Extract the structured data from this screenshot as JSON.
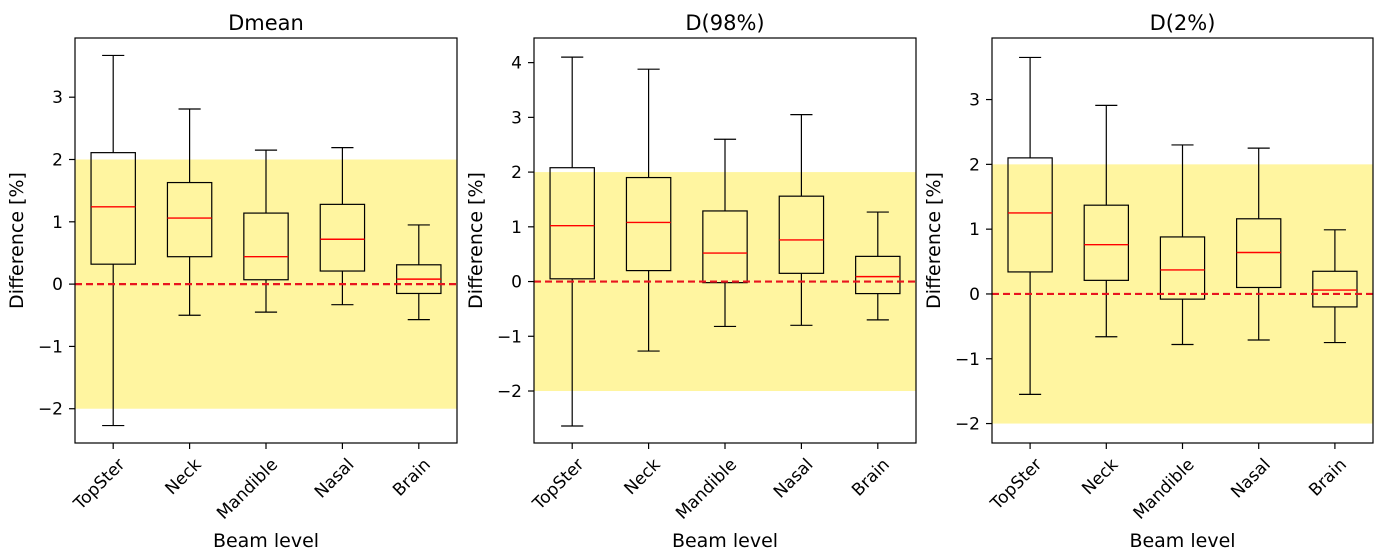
{
  "colors": {
    "band": "#fff5a0",
    "median": "#ff0000",
    "zero_line": "#e8141e",
    "box_edge": "#000000"
  },
  "chart_data": [
    {
      "type": "box",
      "title": "Dmean",
      "xlabel": "Beam level",
      "ylabel": "Difference [%]",
      "ylim": [
        -2.55,
        3.95
      ],
      "yticks": [
        -2,
        -1,
        0,
        1,
        2,
        3
      ],
      "ytick_labels": [
        "−2",
        "−1",
        "0",
        "1",
        "2",
        "3"
      ],
      "tolerance_band": [
        -2,
        2
      ],
      "reference_line": 0,
      "grid": false,
      "categories": [
        "TopSter",
        "Neck",
        "Mandible",
        "Nasal",
        "Brain"
      ],
      "boxes": [
        {
          "min": -2.27,
          "q1": 0.32,
          "median": 1.24,
          "q3": 2.11,
          "max": 3.67
        },
        {
          "min": -0.5,
          "q1": 0.44,
          "median": 1.06,
          "q3": 1.63,
          "max": 2.81
        },
        {
          "min": -0.45,
          "q1": 0.07,
          "median": 0.44,
          "q3": 1.14,
          "max": 2.15
        },
        {
          "min": -0.33,
          "q1": 0.21,
          "median": 0.72,
          "q3": 1.28,
          "max": 2.19
        },
        {
          "min": -0.57,
          "q1": -0.15,
          "median": 0.08,
          "q3": 0.31,
          "max": 0.95
        }
      ]
    },
    {
      "type": "box",
      "title": "D(98%)",
      "xlabel": "Beam level",
      "ylabel": "Difference [%]",
      "ylim": [
        -2.95,
        4.45
      ],
      "yticks": [
        -2,
        -1,
        0,
        1,
        2,
        3,
        4
      ],
      "ytick_labels": [
        "−2",
        "−1",
        "0",
        "1",
        "2",
        "3",
        "4"
      ],
      "tolerance_band": [
        -2,
        2
      ],
      "reference_line": 0,
      "grid": false,
      "categories": [
        "TopSter",
        "Neck",
        "Mandible",
        "Nasal",
        "Brain"
      ],
      "boxes": [
        {
          "min": -2.64,
          "q1": 0.05,
          "median": 1.02,
          "q3": 2.08,
          "max": 4.1
        },
        {
          "min": -1.27,
          "q1": 0.2,
          "median": 1.08,
          "q3": 1.9,
          "max": 3.88
        },
        {
          "min": -0.82,
          "q1": -0.02,
          "median": 0.52,
          "q3": 1.29,
          "max": 2.6
        },
        {
          "min": -0.8,
          "q1": 0.15,
          "median": 0.76,
          "q3": 1.56,
          "max": 3.05
        },
        {
          "min": -0.7,
          "q1": -0.22,
          "median": 0.09,
          "q3": 0.46,
          "max": 1.27
        }
      ]
    },
    {
      "type": "box",
      "title": "D(2%)",
      "xlabel": "Beam level",
      "ylabel": "Difference [%]",
      "ylim": [
        -2.3,
        3.95
      ],
      "yticks": [
        -2,
        -1,
        0,
        1,
        2,
        3
      ],
      "ytick_labels": [
        "−2",
        "−1",
        "0",
        "1",
        "2",
        "3"
      ],
      "tolerance_band": [
        -2,
        2
      ],
      "reference_line": 0,
      "grid": false,
      "categories": [
        "TopSter",
        "Neck",
        "Mandible",
        "Nasal",
        "Brain"
      ],
      "boxes": [
        {
          "min": -1.55,
          "q1": 0.34,
          "median": 1.25,
          "q3": 2.1,
          "max": 3.65
        },
        {
          "min": -0.66,
          "q1": 0.21,
          "median": 0.76,
          "q3": 1.37,
          "max": 2.91
        },
        {
          "min": -0.78,
          "q1": -0.08,
          "median": 0.37,
          "q3": 0.88,
          "max": 2.3
        },
        {
          "min": -0.71,
          "q1": 0.1,
          "median": 0.64,
          "q3": 1.16,
          "max": 2.25
        },
        {
          "min": -0.75,
          "q1": -0.2,
          "median": 0.06,
          "q3": 0.35,
          "max": 0.99
        }
      ]
    }
  ]
}
